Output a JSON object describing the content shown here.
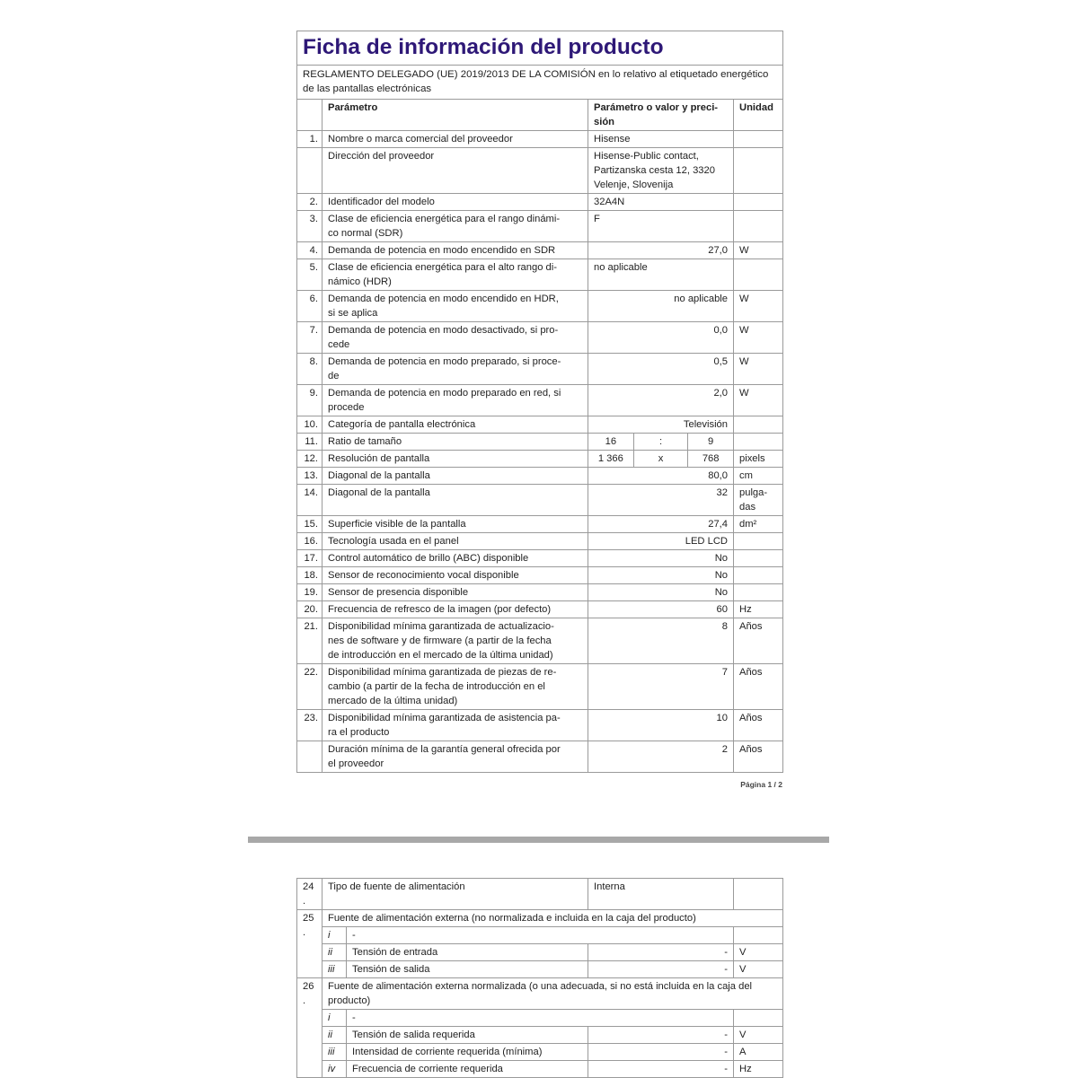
{
  "title": "Ficha de información del producto",
  "subtitle": "REGLAMENTO DELEGADO (UE) 2019/2013 DE LA COMISIÓN en lo relativo al etiquetado energético de las pantallas electrónicas",
  "header": {
    "param": "Parámetro",
    "value": "Parámetro o valor y preci-\nsión",
    "unit": "Unidad"
  },
  "rows": [
    {
      "n": "1.",
      "p": "Nombre o marca comercial del proveedor",
      "v": "Hisense",
      "u": ""
    },
    {
      "n": "",
      "p": "Dirección del proveedor",
      "v": "Hisense-Public contact,\nPartizanska cesta 12, 3320\nVelenje, Slovenija",
      "u": ""
    },
    {
      "n": "2.",
      "p": "Identificador del modelo",
      "v": "32A4N",
      "u": ""
    },
    {
      "n": "3.",
      "p": "Clase de eficiencia energética para el rango dinámi-\nco normal (SDR)",
      "v": "F",
      "u": ""
    },
    {
      "n": "4.",
      "p": "Demanda de potencia en modo encendido en SDR",
      "v": "27,0",
      "u": "W"
    },
    {
      "n": "5.",
      "p": "Clase de eficiencia energética para el alto rango di-\nnámico (HDR)",
      "v": "no aplicable",
      "u": ""
    },
    {
      "n": "6.",
      "p": "Demanda de potencia en modo encendido en HDR,\nsi se aplica",
      "v": "no aplicable",
      "u": "W"
    },
    {
      "n": "7.",
      "p": "Demanda de potencia en modo desactivado, si pro-\ncede",
      "v": "0,0",
      "u": "W"
    },
    {
      "n": "8.",
      "p": "Demanda de potencia en modo preparado, si proce-\nde",
      "v": "0,5",
      "u": "W"
    },
    {
      "n": "9.",
      "p": "Demanda de potencia en modo preparado en red, si\nprocede",
      "v": "2,0",
      "u": "W"
    },
    {
      "n": "10.",
      "p": "Categoría de pantalla electrónica",
      "v": "Televisión",
      "u": ""
    },
    {
      "n": "11.",
      "p": "Ratio de tamaño",
      "split": [
        "16",
        ":",
        "9"
      ],
      "u": ""
    },
    {
      "n": "12.",
      "p": "Resolución de pantalla",
      "split": [
        "1 366",
        "x",
        "768"
      ],
      "u": "pixels"
    },
    {
      "n": "13.",
      "p": "Diagonal de la pantalla",
      "v": "80,0",
      "u": "cm"
    },
    {
      "n": "14.",
      "p": "Diagonal de la pantalla",
      "v": "32",
      "u": "pulga-\ndas"
    },
    {
      "n": "15.",
      "p": "Superficie visible de la pantalla",
      "v": "27,4",
      "u": "dm²"
    },
    {
      "n": "16.",
      "p": "Tecnología usada en el panel",
      "v": "LED LCD",
      "u": ""
    },
    {
      "n": "17.",
      "p": "Control automático de brillo (ABC) disponible",
      "v": "No",
      "u": ""
    },
    {
      "n": "18.",
      "p": "Sensor de reconocimiento vocal disponible",
      "v": "No",
      "u": ""
    },
    {
      "n": "19.",
      "p": "Sensor de presencia disponible",
      "v": "No",
      "u": ""
    },
    {
      "n": "20.",
      "p": "Frecuencia de refresco de la imagen (por defecto)",
      "v": "60",
      "u": "Hz"
    },
    {
      "n": "21.",
      "p": "Disponibilidad mínima garantizada de actualizacio-\nnes de software y de firmware (a partir de la fecha\nde introducción en el mercado de la última unidad)",
      "v": "8",
      "u": "Años"
    },
    {
      "n": "22.",
      "p": "Disponibilidad mínima garantizada de piezas de re-\ncambio (a partir de la fecha de introducción en el\nmercado de la última unidad)",
      "v": "7",
      "u": "Años"
    },
    {
      "n": "23.",
      "p": "Disponibilidad mínima garantizada de asistencia pa-\nra el producto",
      "v": "10",
      "u": "Años"
    },
    {
      "n": "",
      "p": "Duración mínima de la garantía general ofrecida por\nel proveedor",
      "v": "2",
      "u": "Años"
    }
  ],
  "page_number": "Página 1 / 2",
  "page2": {
    "r24": {
      "n": "24.",
      "p": "Tipo de fuente de alimentación",
      "v": "Interna"
    },
    "r25": {
      "n": "25.",
      "p": "Fuente de alimentación externa (no normalizada e incluida en la caja del producto)",
      "sub": [
        {
          "i": "i",
          "p": "-",
          "v": "",
          "u": ""
        },
        {
          "i": "ii",
          "p": "Tensión de entrada",
          "v": "-",
          "u": "V"
        },
        {
          "i": "iii",
          "p": "Tensión de salida",
          "v": "-",
          "u": "V"
        }
      ]
    },
    "r26": {
      "n": "26.",
      "p": "Fuente de alimentación externa normalizada (o una adecuada, si no está incluida en la caja del producto)",
      "sub": [
        {
          "i": "i",
          "p": "-",
          "v": "",
          "u": ""
        },
        {
          "i": "ii",
          "p": "Tensión de salida requerida",
          "v": "-",
          "u": "V"
        },
        {
          "i": "iii",
          "p": "Intensidad de corriente requerida (mínima)",
          "v": "-",
          "u": "A"
        },
        {
          "i": "iv",
          "p": "Frecuencia de corriente requerida",
          "v": "-",
          "u": "Hz"
        }
      ]
    }
  },
  "colors": {
    "title": "#2e1877",
    "border": "#9a9a9a",
    "divider": "#a8a8a8"
  }
}
